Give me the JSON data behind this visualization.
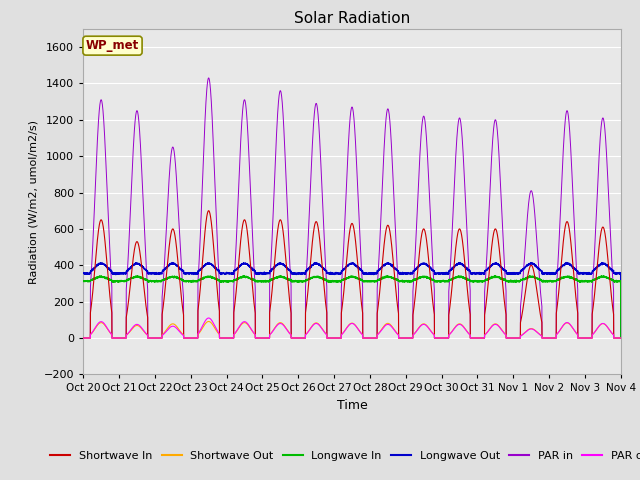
{
  "title": "Solar Radiation",
  "ylabel": "Radiation (W/m2, umol/m2/s)",
  "xlabel": "Time",
  "ylim": [
    -200,
    1700
  ],
  "yticks": [
    -200,
    0,
    200,
    400,
    600,
    800,
    1000,
    1200,
    1400,
    1600
  ],
  "n_days": 15,
  "xtick_labels": [
    "Oct 20",
    "Oct 21",
    "Oct 22",
    "Oct 23",
    "Oct 24",
    "Oct 25",
    "Oct 26",
    "Oct 27",
    "Oct 28",
    "Oct 29",
    "Oct 30",
    "Oct 31",
    "Nov 1",
    "Nov 2",
    "Nov 3",
    "Nov 4"
  ],
  "background_color": "#e0e0e0",
  "plot_bg_color": "#e8e8e8",
  "grid_color": "#ffffff",
  "annotation_text": "WP_met",
  "annotation_bg": "#ffffcc",
  "annotation_border": "#888800",
  "annotation_text_color": "#880000",
  "colors": {
    "shortwave_in": "#cc0000",
    "shortwave_out": "#ffaa00",
    "longwave_in": "#00bb00",
    "longwave_out": "#0000cc",
    "par_in": "#9900cc",
    "par_out": "#ff00ff"
  },
  "legend_labels": [
    "Shortwave In",
    "Shortwave Out",
    "Longwave In",
    "Longwave Out",
    "PAR in",
    "PAR out"
  ],
  "day_peaks": [
    650,
    530,
    600,
    700,
    650,
    650,
    640,
    630,
    620,
    600,
    600,
    600,
    400,
    640,
    610
  ],
  "par_in_peaks": [
    1310,
    1250,
    1050,
    1430,
    1310,
    1360,
    1290,
    1270,
    1260,
    1220,
    1210,
    1200,
    810,
    1250,
    1210
  ],
  "par_out_peaks": [
    90,
    75,
    65,
    110,
    90,
    80,
    80,
    80,
    75,
    75,
    75,
    75,
    50,
    85,
    80
  ],
  "longwave_out_base": 370,
  "longwave_in_base": 320
}
